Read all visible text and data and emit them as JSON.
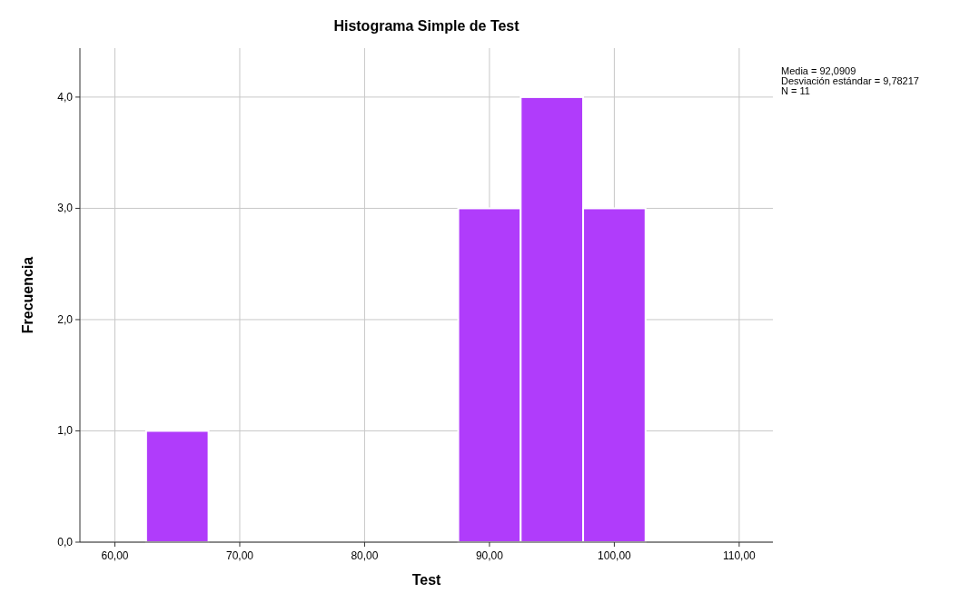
{
  "chart_data": {
    "type": "histogram",
    "title": "Histograma Simple de Test",
    "xlabel": "Test",
    "ylabel": "Frecuencia",
    "bins": [
      62.5,
      67.5,
      72.5,
      77.5,
      82.5,
      87.5,
      92.5,
      97.5,
      102.5
    ],
    "values": [
      1,
      0,
      0,
      0,
      0,
      3,
      4,
      3
    ],
    "color": "#b03cfb",
    "xlim": [
      57.2,
      112.7
    ],
    "xticks": [
      {
        "value": 60,
        "label": "60,00"
      },
      {
        "value": 70,
        "label": "70,00"
      },
      {
        "value": 80,
        "label": "80,00"
      },
      {
        "value": 90,
        "label": "90,00"
      },
      {
        "value": 100,
        "label": "100,00"
      },
      {
        "value": 110,
        "label": "110,00"
      }
    ],
    "ylim": [
      0,
      4.44
    ],
    "yticks": [
      {
        "value": 0,
        "label": "0,0"
      },
      {
        "value": 1,
        "label": "1,0"
      },
      {
        "value": 2,
        "label": "2,0"
      },
      {
        "value": 3,
        "label": "3,0"
      },
      {
        "value": 4,
        "label": "4,0"
      }
    ],
    "grid": true,
    "annotations": [
      "Media = 92,0909",
      "Desviación estándar = 9,78217",
      "N = 11"
    ]
  }
}
